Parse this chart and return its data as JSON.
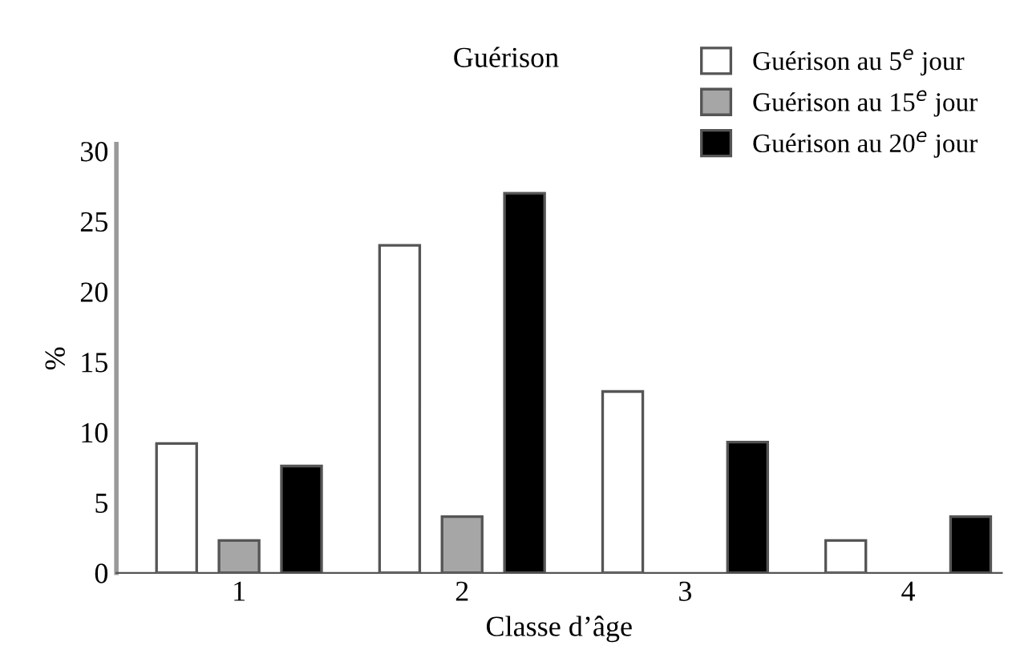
{
  "chart_data": {
    "type": "bar",
    "title": "Guérison",
    "xlabel": "Classe d’âge",
    "ylabel": "%",
    "categories": [
      "1",
      "2",
      "3",
      "4"
    ],
    "series": [
      {
        "name": "Guérison au 5$^{e}$ jour",
        "color": "#ffffff",
        "values": [
          9.2,
          23.3,
          12.9,
          2.3
        ]
      },
      {
        "name": "Guérison au 15$^{e}$ jour",
        "color": "#a6a6a6",
        "values": [
          2.3,
          4.0,
          null,
          null
        ]
      },
      {
        "name": "Guérison au 20$^{e}$ jour",
        "color": "#000000",
        "values": [
          7.6,
          27.0,
          9.3,
          4.0
        ]
      }
    ],
    "ylim": [
      0,
      30.5
    ],
    "yticks": [
      0,
      5,
      10,
      15,
      20,
      25,
      30
    ],
    "grid": false,
    "legend": "top right"
  }
}
